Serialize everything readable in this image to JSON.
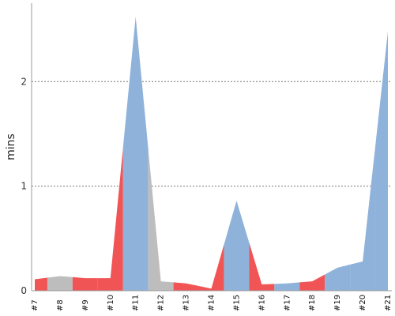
{
  "chart_data": {
    "type": "area",
    "ylabel": "mins",
    "xlabel": "",
    "title": "",
    "ylim": [
      0,
      2.75
    ],
    "yticks": [
      0,
      1,
      2
    ],
    "grid": true,
    "categories": [
      "#7",
      "#8",
      "#9",
      "#10",
      "#11",
      "#12",
      "#13",
      "#14",
      "#15",
      "#16",
      "#17",
      "#18",
      "#19",
      "#20",
      "#21"
    ],
    "values": [
      0.11,
      0.14,
      0.12,
      0.12,
      2.62,
      0.09,
      0.07,
      0.02,
      0.86,
      0.06,
      0.07,
      0.09,
      0.22,
      0.28,
      2.48
    ],
    "status": [
      "red",
      "gray",
      "red",
      "red",
      "blue",
      "gray",
      "red",
      "red",
      "blue",
      "red",
      "blue",
      "red",
      "blue",
      "blue",
      "blue"
    ],
    "colors": {
      "red": "#f05455",
      "gray": "#bdbdbd",
      "blue": "#8fb2da"
    }
  }
}
